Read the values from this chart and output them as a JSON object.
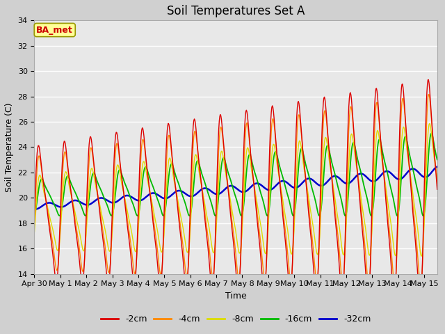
{
  "title": "Soil Temperatures Set A",
  "xlabel": "Time",
  "ylabel": "Soil Temperature (C)",
  "ylim": [
    14,
    34
  ],
  "yticks": [
    14,
    16,
    18,
    20,
    22,
    24,
    26,
    28,
    30,
    32,
    34
  ],
  "series_colors": [
    "#dd0000",
    "#ff8800",
    "#dddd00",
    "#00bb00",
    "#0000cc"
  ],
  "series_labels": [
    "-2cm",
    "-4cm",
    "-8cm",
    "-16cm",
    "-32cm"
  ],
  "annotation_text": "BA_met",
  "annotation_color": "#cc0000",
  "annotation_bg": "#ffff99",
  "annotation_edge": "#999900",
  "fig_bg": "#d0d0d0",
  "plot_bg": "#e8e8e8",
  "grid_color": "#ffffff",
  "title_fontsize": 12,
  "label_fontsize": 9,
  "tick_fontsize": 8,
  "x_tick_labels": [
    "Apr 30",
    "May 1",
    "May 2",
    "May 3",
    "May 4",
    "May 5",
    "May 6",
    "May 7",
    "May 8",
    "May 9",
    "May 10",
    "May 11",
    "May 12",
    "May 13",
    "May 14",
    "May 15"
  ],
  "x_tick_positions": [
    0,
    1,
    2,
    3,
    4,
    5,
    6,
    7,
    8,
    9,
    10,
    11,
    12,
    13,
    14,
    15
  ]
}
